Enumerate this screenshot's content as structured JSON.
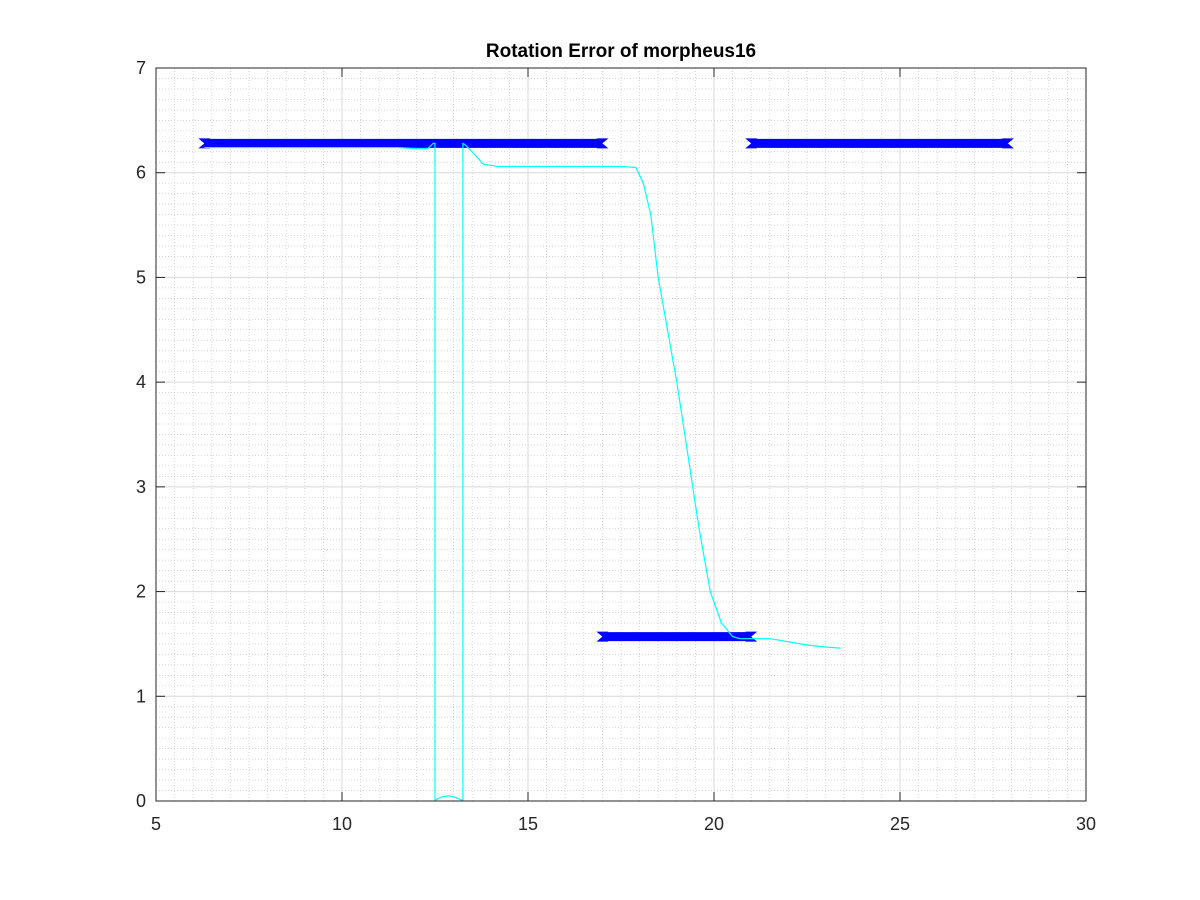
{
  "chart_data": {
    "type": "line",
    "title": "Rotation Error of morpheus16",
    "xlabel": "",
    "ylabel": "",
    "xlim": [
      5,
      30
    ],
    "ylim": [
      0,
      7
    ],
    "xticks": [
      5,
      10,
      15,
      20,
      25,
      30
    ],
    "yticks": [
      0,
      1,
      2,
      3,
      4,
      5,
      6,
      7
    ],
    "grid": true,
    "minor_grid": true,
    "legend": "none",
    "colors": {
      "axes": "#262626",
      "major_grid": "#d9d9d9",
      "minor_grid": "#c8c8c8",
      "thick_series": "#0000ff",
      "thin_series": "#00ffff"
    },
    "series": [
      {
        "style": "thick",
        "segments": [
          {
            "x": [
              6.3,
              17.0
            ],
            "y": [
              6.28,
              6.28
            ]
          },
          {
            "x": [
              21.0,
              27.9
            ],
            "y": [
              6.28,
              6.28
            ]
          },
          {
            "x": [
              17.0,
              21.0
            ],
            "y": [
              1.57,
              1.57
            ]
          }
        ]
      },
      {
        "style": "thin",
        "x": [
          6.3,
          8.0,
          10.0,
          11.5,
          12.0,
          12.3,
          12.45,
          12.5,
          12.5,
          12.55,
          12.7,
          12.85,
          13.0,
          13.15,
          13.25,
          13.25,
          13.3,
          13.5,
          13.8,
          14.2,
          15.0,
          16.0,
          17.0,
          17.5,
          17.9,
          18.1,
          18.3,
          18.5,
          18.8,
          19.0,
          19.3,
          19.6,
          19.9,
          20.2,
          20.5,
          20.7,
          21.0,
          21.5,
          22.0,
          22.5,
          23.0,
          23.4
        ],
        "y": [
          6.24,
          6.24,
          6.24,
          6.24,
          6.23,
          6.23,
          6.28,
          6.28,
          0.0,
          0.02,
          0.04,
          0.05,
          0.04,
          0.02,
          0.0,
          6.28,
          6.27,
          6.2,
          6.08,
          6.06,
          6.06,
          6.06,
          6.06,
          6.06,
          6.05,
          5.9,
          5.6,
          5.0,
          4.4,
          4.0,
          3.3,
          2.6,
          2.0,
          1.7,
          1.57,
          1.55,
          1.55,
          1.55,
          1.52,
          1.49,
          1.47,
          1.46
        ]
      }
    ]
  }
}
